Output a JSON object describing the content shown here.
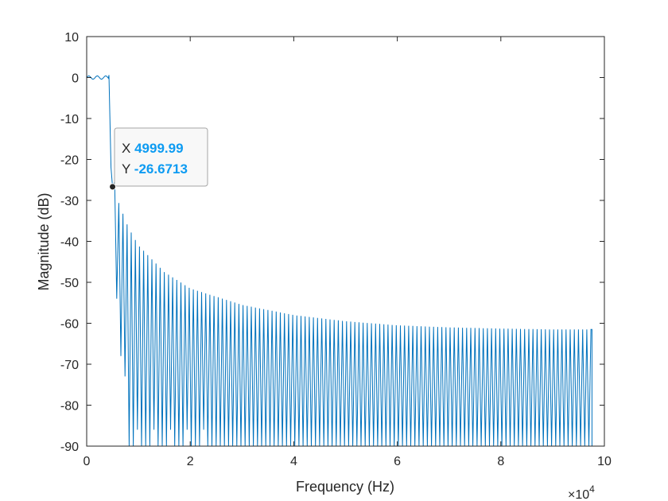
{
  "chart_data": {
    "type": "line",
    "title": "",
    "xlabel": "Frequency (Hz)",
    "ylabel": "Magnitude (dB)",
    "xlim": [
      0,
      100000
    ],
    "ylim": [
      -90,
      10
    ],
    "x_exponent_label": "×10",
    "x_exponent_power": "4",
    "x_ticks": [
      0,
      20000,
      40000,
      60000,
      80000,
      100000
    ],
    "x_tick_labels": [
      "0",
      "2",
      "4",
      "6",
      "8",
      "10"
    ],
    "y_ticks": [
      10,
      0,
      -10,
      -20,
      -30,
      -40,
      -50,
      -60,
      -70,
      -80,
      -90
    ],
    "y_tick_labels": [
      "10",
      "0",
      "-10",
      "-20",
      "-30",
      "-40",
      "-50",
      "-60",
      "-70",
      "-80",
      "-90"
    ],
    "grid": false,
    "line_color": "#0072BD",
    "series": [
      {
        "description": "Lowpass filter magnitude response: ~0 dB passband to ~4000 Hz, sharp transition near 5000 Hz, then dense sidelobe ripple decaying from about -21 dB toward about -61.5 dB at 97600 Hz, nulls clipped at -90 dB",
        "passband": {
          "x_start": 0,
          "x_end": 4200,
          "level_db": 0,
          "ripple_db": 0.8
        },
        "transition": {
          "x_start": 4200,
          "x_end": 5000
        },
        "stopband_envelope": {
          "x": [
            4800,
            6000,
            8000,
            10000,
            15000,
            20000,
            30000,
            40000,
            50000,
            60000,
            70000,
            80000,
            90000,
            97600
          ],
          "y": [
            -21,
            -30,
            -36.5,
            -41,
            -47.5,
            -51.5,
            -55.5,
            -58,
            -59.5,
            -60.5,
            -61,
            -61.3,
            -61.5,
            -61.5
          ]
        },
        "x_end": 97600,
        "floor_db": -90
      }
    ],
    "datatip": {
      "x_label": "X",
      "x_value": "4999.99",
      "y_label": "Y",
      "y_value": "-26.6713",
      "x": 4999.99,
      "y": -26.6713,
      "value_color": "#0D9BF2"
    }
  }
}
